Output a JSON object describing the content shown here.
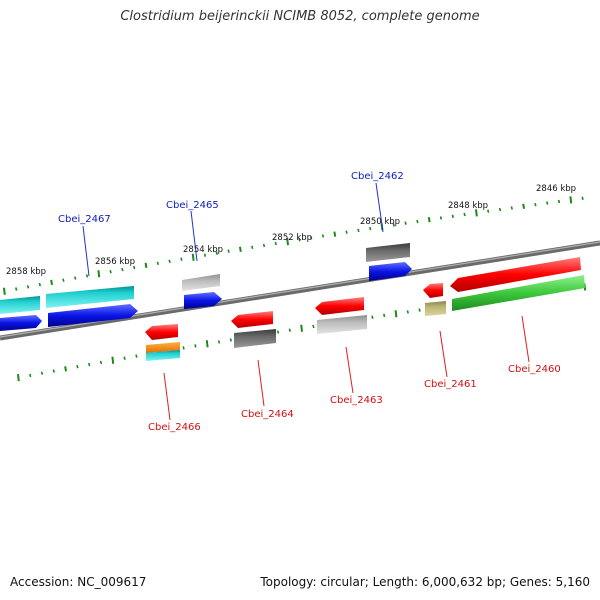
{
  "title": "Clostridium beijerinckii NCIMB 8052, complete genome",
  "footer": {
    "accession": "Accession: NC_009617",
    "summary": "Topology: circular; Length: 6,000,632 bp; Genes: 5,160"
  },
  "scale_labels": [
    "2846 kbp",
    "2848 kbp",
    "2850 kbp",
    "2852 kbp",
    "2854 kbp",
    "2856 kbp",
    "2858 kbp"
  ],
  "gene_labels": {
    "forward": [
      "Cbei_2467",
      "Cbei_2465",
      "Cbei_2462"
    ],
    "reverse": [
      "Cbei_2466",
      "Cbei_2464",
      "Cbei_2463",
      "Cbei_2461",
      "Cbei_2460"
    ]
  },
  "colors": {
    "backbone": "#888888",
    "ticks": "#1a8a1a",
    "forward_label": "#1020c0",
    "reverse_label": "#d01010",
    "leader_forward": "#2030d0",
    "leader_reverse": "#e02020"
  }
}
